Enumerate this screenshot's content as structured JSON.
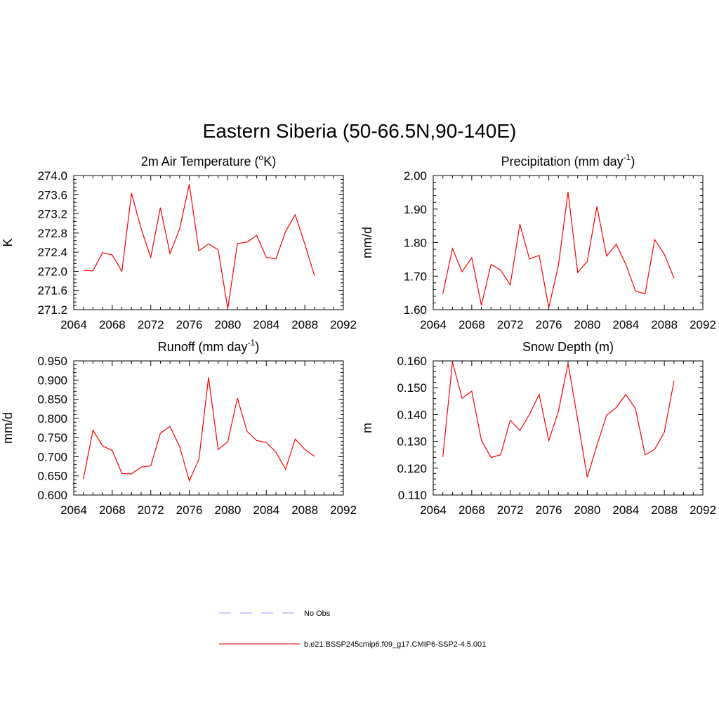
{
  "figure": {
    "title": "Eastern Siberia (50-66.5N,90-140E)"
  },
  "chart_data": [
    {
      "type": "line",
      "title": "2m Air Temperature (°K)",
      "title_base": "2m Air Temperature (",
      "title_sup": "o",
      "title_tail": "K)",
      "xlabel": "",
      "ylabel": "K",
      "xlim": [
        2064,
        2092
      ],
      "ylim": [
        271.2,
        274.0
      ],
      "xticks": [
        2064,
        2068,
        2072,
        2076,
        2080,
        2084,
        2088,
        2092
      ],
      "yticks": [
        271.2,
        271.6,
        272.0,
        272.4,
        272.8,
        273.2,
        273.6,
        274.0
      ],
      "ytick_labels": [
        "271.2",
        "271.6",
        "272.0",
        "272.4",
        "272.8",
        "273.2",
        "273.6",
        "274.0"
      ],
      "series": [
        {
          "color": "#ff0000",
          "x": [
            2065,
            2066,
            2067,
            2068,
            2069,
            2070,
            2071,
            2072,
            2073,
            2074,
            2075,
            2076,
            2077,
            2078,
            2079,
            2080,
            2081,
            2082,
            2083,
            2084,
            2085,
            2086,
            2087,
            2088,
            2089
          ],
          "y": [
            272.02,
            272.01,
            272.39,
            272.34,
            272.0,
            273.63,
            272.89,
            272.29,
            273.33,
            272.37,
            272.89,
            273.82,
            272.43,
            272.57,
            272.45,
            271.22,
            272.58,
            272.61,
            272.75,
            272.29,
            272.26,
            272.83,
            273.18,
            272.57,
            271.91
          ]
        }
      ]
    },
    {
      "type": "line",
      "title": "Precipitation (mm day-1)",
      "title_base": "Precipitation (mm day",
      "title_sup": "-1",
      "title_tail": ")",
      "xlabel": "",
      "ylabel": "mm/d",
      "xlim": [
        2064,
        2092
      ],
      "ylim": [
        1.6,
        2.0
      ],
      "xticks": [
        2064,
        2068,
        2072,
        2076,
        2080,
        2084,
        2088,
        2092
      ],
      "yticks": [
        1.6,
        1.7,
        1.8,
        1.9,
        2.0
      ],
      "ytick_labels": [
        "1.60",
        "1.70",
        "1.80",
        "1.90",
        "2.00"
      ],
      "series": [
        {
          "color": "#ff0000",
          "x": [
            2065,
            2066,
            2067,
            2068,
            2069,
            2070,
            2071,
            2072,
            2073,
            2074,
            2075,
            2076,
            2077,
            2078,
            2079,
            2080,
            2081,
            2082,
            2083,
            2084,
            2085,
            2086,
            2087,
            2088,
            2089
          ],
          "y": [
            1.648,
            1.782,
            1.713,
            1.755,
            1.613,
            1.735,
            1.718,
            1.674,
            1.855,
            1.751,
            1.762,
            1.606,
            1.732,
            1.951,
            1.711,
            1.744,
            1.908,
            1.76,
            1.795,
            1.735,
            1.656,
            1.647,
            1.809,
            1.765,
            1.694
          ]
        }
      ]
    },
    {
      "type": "line",
      "title": "Runoff (mm day-1)",
      "title_base": "Runoff (mm day",
      "title_sup": "-1",
      "title_tail": ")",
      "xlabel": "",
      "ylabel": "mm/d",
      "xlim": [
        2064,
        2092
      ],
      "ylim": [
        0.6,
        0.95
      ],
      "xticks": [
        2064,
        2068,
        2072,
        2076,
        2080,
        2084,
        2088,
        2092
      ],
      "yticks": [
        0.6,
        0.65,
        0.7,
        0.75,
        0.8,
        0.85,
        0.9,
        0.95
      ],
      "ytick_labels": [
        "0.600",
        "0.650",
        "0.700",
        "0.750",
        "0.800",
        "0.850",
        "0.900",
        "0.950"
      ],
      "series": [
        {
          "color": "#ff0000",
          "x": [
            2065,
            2066,
            2067,
            2068,
            2069,
            2070,
            2071,
            2072,
            2073,
            2074,
            2075,
            2076,
            2077,
            2078,
            2079,
            2080,
            2081,
            2082,
            2083,
            2084,
            2085,
            2086,
            2087,
            2088,
            2089
          ],
          "y": [
            0.642,
            0.769,
            0.728,
            0.716,
            0.656,
            0.655,
            0.673,
            0.676,
            0.761,
            0.779,
            0.726,
            0.637,
            0.693,
            0.907,
            0.719,
            0.739,
            0.853,
            0.766,
            0.742,
            0.737,
            0.712,
            0.667,
            0.746,
            0.719,
            0.701
          ]
        }
      ]
    },
    {
      "type": "line",
      "title": "Snow Depth (m)",
      "title_base": "Snow Depth (m)",
      "title_sup": "",
      "title_tail": "",
      "xlabel": "",
      "ylabel": "m",
      "xlim": [
        2064,
        2092
      ],
      "ylim": [
        0.11,
        0.16
      ],
      "xticks": [
        2064,
        2068,
        2072,
        2076,
        2080,
        2084,
        2088,
        2092
      ],
      "yticks": [
        0.11,
        0.12,
        0.13,
        0.14,
        0.15,
        0.16
      ],
      "ytick_labels": [
        "0.110",
        "0.120",
        "0.130",
        "0.140",
        "0.150",
        "0.160"
      ],
      "series": [
        {
          "color": "#ff0000",
          "x": [
            2065,
            2066,
            2067,
            2068,
            2069,
            2070,
            2071,
            2072,
            2073,
            2074,
            2075,
            2076,
            2077,
            2078,
            2079,
            2080,
            2081,
            2082,
            2083,
            2084,
            2085,
            2086,
            2087,
            2088,
            2089
          ],
          "y": [
            0.1242,
            0.1596,
            0.1461,
            0.1487,
            0.1304,
            0.124,
            0.125,
            0.1379,
            0.134,
            0.1401,
            0.1475,
            0.1303,
            0.1412,
            0.1591,
            0.1382,
            0.1166,
            0.1285,
            0.1397,
            0.1426,
            0.1475,
            0.1422,
            0.125,
            0.127,
            0.1334,
            0.1525
          ]
        }
      ]
    }
  ],
  "legend": {
    "items": [
      {
        "label": "No Obs",
        "color": "#9999ff",
        "dash": "dashed"
      },
      {
        "label": "b.e21.BSSP245cmip6.f09_g17.CMIP6-SSP2-4.5.001",
        "color": "#ff0000",
        "dash": "solid"
      }
    ]
  }
}
